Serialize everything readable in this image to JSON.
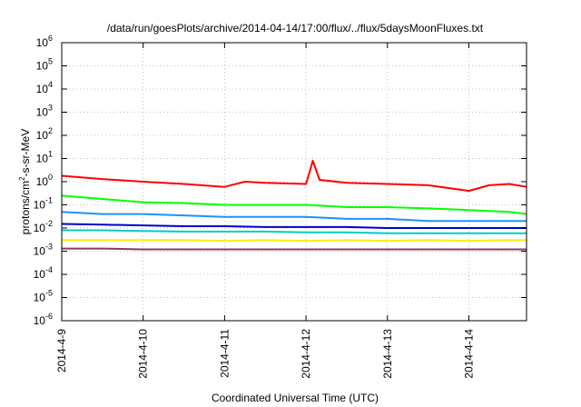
{
  "chart_data": {
    "type": "line",
    "title": "/data/run/goesPlots/archive/2014-04-14/17:00/flux/../flux/5daysMoonFluxes.txt",
    "xlabel": "Coordinated Universal Time (UTC)",
    "ylabel": {
      "base": "protons/cm",
      "sup": "2",
      "rest": "-s-sr-MeV"
    },
    "yscale": "log",
    "ylim_exponent": [
      -6,
      6
    ],
    "y_ticks": [
      {
        "base": "10",
        "exp": "-6",
        "value_exp": -6
      },
      {
        "base": "10",
        "exp": "-5",
        "value_exp": -5
      },
      {
        "base": "10",
        "exp": "-4",
        "value_exp": -4
      },
      {
        "base": "10",
        "exp": "-3",
        "value_exp": -3
      },
      {
        "base": "10",
        "exp": "-2",
        "value_exp": -2
      },
      {
        "base": "10",
        "exp": "-1",
        "value_exp": -1
      },
      {
        "base": "10",
        "exp": "0",
        "value_exp": 0
      },
      {
        "base": "10",
        "exp": "1",
        "value_exp": 1
      },
      {
        "base": "10",
        "exp": "2",
        "value_exp": 2
      },
      {
        "base": "10",
        "exp": "3",
        "value_exp": 3
      },
      {
        "base": "10",
        "exp": "4",
        "value_exp": 4
      },
      {
        "base": "10",
        "exp": "5",
        "value_exp": 5
      },
      {
        "base": "10",
        "exp": "6",
        "value_exp": 6
      }
    ],
    "x_ticks": [
      "2014-4-9",
      "2014-4-10",
      "2014-4-11",
      "2014-4-12",
      "2014-4-13",
      "2014-4-14"
    ],
    "xlim": [
      "2014-04-09T00:00",
      "2014-04-14T17:00"
    ],
    "grid": true,
    "series": [
      {
        "color": "#ff0000",
        "x": [
          "2014-04-09T00:00",
          "2014-04-09T12:00",
          "2014-04-10T00:00",
          "2014-04-10T12:00",
          "2014-04-11T00:00",
          "2014-04-11T06:00",
          "2014-04-11T12:00",
          "2014-04-12T00:00",
          "2014-04-12T02:00",
          "2014-04-12T04:00",
          "2014-04-12T12:00",
          "2014-04-13T00:00",
          "2014-04-13T12:00",
          "2014-04-14T00:00",
          "2014-04-14T06:00",
          "2014-04-14T12:00",
          "2014-04-14T17:00"
        ],
        "y": [
          1.8,
          1.3,
          1.0,
          0.8,
          0.6,
          1.0,
          0.9,
          0.8,
          8,
          1.2,
          0.9,
          0.8,
          0.7,
          0.4,
          0.7,
          0.8,
          0.6
        ]
      },
      {
        "color": "#00ff00",
        "x": [
          "2014-04-09T00:00",
          "2014-04-09T12:00",
          "2014-04-10T00:00",
          "2014-04-10T12:00",
          "2014-04-11T00:00",
          "2014-04-11T12:00",
          "2014-04-12T00:00",
          "2014-04-12T12:00",
          "2014-04-13T00:00",
          "2014-04-13T12:00",
          "2014-04-14T00:00",
          "2014-04-14T12:00",
          "2014-04-14T17:00"
        ],
        "y": [
          0.25,
          0.18,
          0.13,
          0.12,
          0.1,
          0.1,
          0.1,
          0.08,
          0.08,
          0.07,
          0.06,
          0.05,
          0.04
        ]
      },
      {
        "color": "#1e90ff",
        "x": [
          "2014-04-09T00:00",
          "2014-04-09T12:00",
          "2014-04-10T00:00",
          "2014-04-10T12:00",
          "2014-04-11T00:00",
          "2014-04-11T12:00",
          "2014-04-12T00:00",
          "2014-04-12T12:00",
          "2014-04-13T00:00",
          "2014-04-13T12:00",
          "2014-04-14T00:00",
          "2014-04-14T12:00",
          "2014-04-14T17:00"
        ],
        "y": [
          0.05,
          0.04,
          0.04,
          0.035,
          0.03,
          0.03,
          0.03,
          0.025,
          0.025,
          0.02,
          0.02,
          0.02,
          0.02
        ]
      },
      {
        "color": "#0000cd",
        "x": [
          "2014-04-09T00:00",
          "2014-04-09T12:00",
          "2014-04-10T00:00",
          "2014-04-10T12:00",
          "2014-04-11T00:00",
          "2014-04-11T12:00",
          "2014-04-12T00:00",
          "2014-04-12T12:00",
          "2014-04-13T00:00",
          "2014-04-13T12:00",
          "2014-04-14T00:00",
          "2014-04-14T12:00",
          "2014-04-14T17:00"
        ],
        "y": [
          0.015,
          0.014,
          0.013,
          0.012,
          0.012,
          0.011,
          0.011,
          0.011,
          0.01,
          0.01,
          0.01,
          0.01,
          0.01
        ]
      },
      {
        "color": "#00cccc",
        "x": [
          "2014-04-09T00:00",
          "2014-04-09T12:00",
          "2014-04-10T00:00",
          "2014-04-10T12:00",
          "2014-04-11T00:00",
          "2014-04-11T12:00",
          "2014-04-12T00:00",
          "2014-04-12T12:00",
          "2014-04-13T00:00",
          "2014-04-13T12:00",
          "2014-04-14T00:00",
          "2014-04-14T12:00",
          "2014-04-14T17:00"
        ],
        "y": [
          0.008,
          0.008,
          0.0075,
          0.007,
          0.007,
          0.007,
          0.0065,
          0.0065,
          0.006,
          0.006,
          0.006,
          0.006,
          0.006
        ]
      },
      {
        "color": "#ffee00",
        "x": [
          "2014-04-09T00:00",
          "2014-04-09T12:00",
          "2014-04-10T00:00",
          "2014-04-10T12:00",
          "2014-04-11T00:00",
          "2014-04-11T12:00",
          "2014-04-12T00:00",
          "2014-04-12T12:00",
          "2014-04-13T00:00",
          "2014-04-13T12:00",
          "2014-04-14T00:00",
          "2014-04-14T12:00",
          "2014-04-14T17:00"
        ],
        "y": [
          0.003,
          0.003,
          0.003,
          0.003,
          0.0028,
          0.003,
          0.0028,
          0.003,
          0.0028,
          0.003,
          0.0028,
          0.003,
          0.003
        ]
      },
      {
        "color": "#8b3a62",
        "x": [
          "2014-04-09T00:00",
          "2014-04-09T12:00",
          "2014-04-10T00:00",
          "2014-04-10T12:00",
          "2014-04-11T00:00",
          "2014-04-11T12:00",
          "2014-04-12T00:00",
          "2014-04-12T12:00",
          "2014-04-13T00:00",
          "2014-04-13T12:00",
          "2014-04-14T00:00",
          "2014-04-14T12:00",
          "2014-04-14T17:00"
        ],
        "y": [
          0.0013,
          0.0013,
          0.0012,
          0.0012,
          0.0012,
          0.0012,
          0.0012,
          0.0012,
          0.0012,
          0.0012,
          0.0012,
          0.0012,
          0.0012
        ]
      }
    ]
  }
}
